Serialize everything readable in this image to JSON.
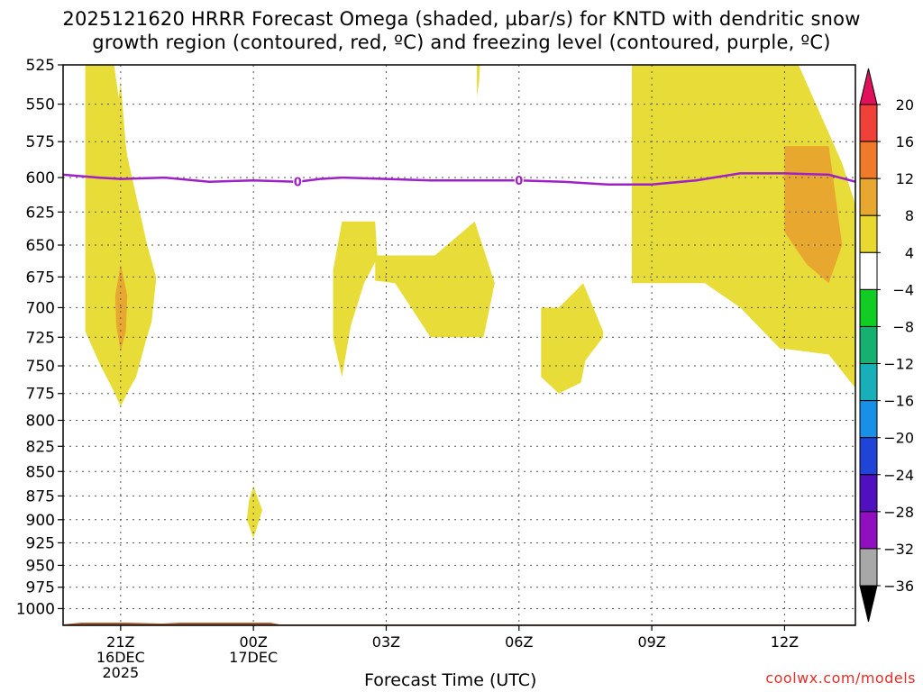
{
  "title": {
    "line1": "2025121620 HRRR Forecast Omega (shaded, µbar/s) for KNTD with dendritic snow",
    "line2": "growth region (contoured, red, ºC) and freezing level (contoured, purple, ºC)"
  },
  "credit": "coolwx.com/models",
  "chart_data": {
    "type": "heatmap",
    "xlabel": "Forecast Time (UTC)",
    "ylabel": "",
    "x_unit": "hours from 2025-12-16 20Z",
    "xlim": [
      -0.3,
      17.6
    ],
    "ylim": [
      525,
      1020
    ],
    "y_scale": "log (pressure, hPa, inverted)",
    "grid": true,
    "x_ticks": [
      {
        "x": 1,
        "label": "21Z",
        "date": "16DEC",
        "year": "2025"
      },
      {
        "x": 4,
        "label": "00Z",
        "date": "17DEC",
        "year": ""
      },
      {
        "x": 7,
        "label": "03Z",
        "date": "",
        "year": ""
      },
      {
        "x": 10,
        "label": "06Z",
        "date": "",
        "year": ""
      },
      {
        "x": 13,
        "label": "09Z",
        "date": "",
        "year": ""
      },
      {
        "x": 16,
        "label": "12Z",
        "date": "",
        "year": ""
      }
    ],
    "y_ticks": [
      525,
      550,
      575,
      600,
      625,
      650,
      675,
      700,
      725,
      750,
      775,
      800,
      825,
      850,
      875,
      900,
      925,
      950,
      975,
      1000
    ],
    "colorbar": {
      "labels": [
        "20",
        "16",
        "12",
        "8",
        "4",
        "−4",
        "−8",
        "−12",
        "−16",
        "−20",
        "−24",
        "−28",
        "−32",
        "−36"
      ],
      "colors": [
        "#e0105a",
        "#f0403a",
        "#ee7a2a",
        "#e8a830",
        "#e8d830",
        "#ffffff",
        "#11cc22",
        "#16b070",
        "#18b0b8",
        "#1890e8",
        "#2044d8",
        "#5010c0",
        "#9010c0",
        "#a8a8a8",
        "#000000"
      ]
    },
    "shading": [
      {
        "color": "#e8dc38",
        "level": "4 to 8",
        "points": [
          [
            0.2,
            525
          ],
          [
            0.85,
            525
          ],
          [
            1.15,
            585
          ],
          [
            1.6,
            650
          ],
          [
            1.8,
            675
          ],
          [
            1.7,
            710
          ],
          [
            1.35,
            760
          ],
          [
            1,
            785
          ],
          [
            0.55,
            750
          ],
          [
            0.2,
            720
          ],
          [
            0.2,
            525
          ]
        ]
      },
      {
        "color": "#e8dc38",
        "level": "4 to 8",
        "points": [
          [
            1,
            535
          ],
          [
            1.15,
            590
          ],
          [
            1.6,
            650
          ],
          [
            1.8,
            678
          ],
          [
            1.7,
            712
          ],
          [
            1.3,
            762
          ],
          [
            1,
            787
          ],
          [
            0.6,
            750
          ],
          [
            0.45,
            720
          ],
          [
            0.45,
            645
          ],
          [
            0.8,
            590
          ],
          [
            1,
            535
          ]
        ]
      },
      {
        "color": "#e8a830",
        "level": "8 to 12",
        "points": [
          [
            1,
            665
          ],
          [
            1.15,
            690
          ],
          [
            1.12,
            720
          ],
          [
            1,
            737
          ],
          [
            0.9,
            715
          ],
          [
            0.88,
            690
          ],
          [
            1,
            665
          ]
        ]
      },
      {
        "color": "#e8dc38",
        "level": "4 to 8",
        "points": [
          [
            6,
            632
          ],
          [
            6.75,
            632
          ],
          [
            6.8,
            660
          ],
          [
            6.5,
            680
          ],
          [
            6.2,
            715
          ],
          [
            6,
            760
          ],
          [
            5.8,
            725
          ],
          [
            5.8,
            670
          ],
          [
            6,
            632
          ]
        ]
      },
      {
        "color": "#e8dc38",
        "level": "4 to 8",
        "points": [
          [
            6.75,
            658
          ],
          [
            8.1,
            658
          ],
          [
            9,
            632
          ],
          [
            9.45,
            680
          ],
          [
            9.2,
            725
          ],
          [
            8,
            725
          ],
          [
            7.2,
            680
          ],
          [
            6.75,
            678
          ],
          [
            6.75,
            658
          ]
        ]
      },
      {
        "color": "#e8dc38",
        "level": "4 to 8",
        "points": [
          [
            9.05,
            525
          ],
          [
            9.12,
            525
          ],
          [
            9.1,
            535
          ],
          [
            9.05,
            545
          ],
          [
            9.05,
            525
          ]
        ]
      },
      {
        "color": "#e8dc38",
        "level": "4 to 8",
        "points": [
          [
            10.9,
            700
          ],
          [
            11.45,
            680
          ],
          [
            11.9,
            720
          ],
          [
            11.9,
            725
          ],
          [
            11.5,
            745
          ],
          [
            11.4,
            765
          ],
          [
            10.9,
            775
          ],
          [
            10.5,
            760
          ],
          [
            10.5,
            700
          ],
          [
            10.9,
            700
          ]
        ]
      },
      {
        "color": "#e8dc38",
        "level": "4 to 8",
        "points": [
          [
            3.9,
            880
          ],
          [
            4.0,
            865
          ],
          [
            4.2,
            890
          ],
          [
            4.0,
            920
          ],
          [
            3.85,
            900
          ],
          [
            3.9,
            880
          ]
        ]
      },
      {
        "color": "#e8dc38",
        "level": "4 to 8",
        "points": [
          [
            12.55,
            518
          ],
          [
            16.2,
            518
          ],
          [
            17.3,
            590
          ],
          [
            17.8,
            640
          ],
          [
            17.6,
            770
          ],
          [
            17,
            740
          ],
          [
            16,
            735
          ],
          [
            15.9,
            735
          ],
          [
            15,
            700
          ],
          [
            14.2,
            680
          ],
          [
            12.55,
            680
          ],
          [
            12.55,
            518
          ]
        ]
      },
      {
        "color": "#e8a830",
        "level": "8 to 12",
        "points": [
          [
            16,
            578
          ],
          [
            17,
            578
          ],
          [
            17.3,
            650
          ],
          [
            17.0,
            680
          ],
          [
            16.5,
            665
          ],
          [
            16,
            640
          ],
          [
            16,
            578
          ]
        ]
      }
    ],
    "freezing_level": {
      "color": "#a020c8",
      "label": "0",
      "label_x": [
        5,
        10
      ],
      "x": [
        -0.3,
        0.5,
        1,
        2,
        3,
        4,
        5,
        5.5,
        6,
        7,
        8,
        9,
        10,
        11,
        12,
        13,
        14,
        15,
        16,
        17,
        17.6
      ],
      "y": [
        598,
        600,
        601,
        600,
        603,
        602,
        603,
        601,
        600,
        601,
        602,
        602,
        602,
        603,
        605,
        605,
        602,
        597,
        597,
        598,
        603
      ]
    },
    "ground": {
      "color": "#a85c30",
      "pressure": 1020
    }
  }
}
